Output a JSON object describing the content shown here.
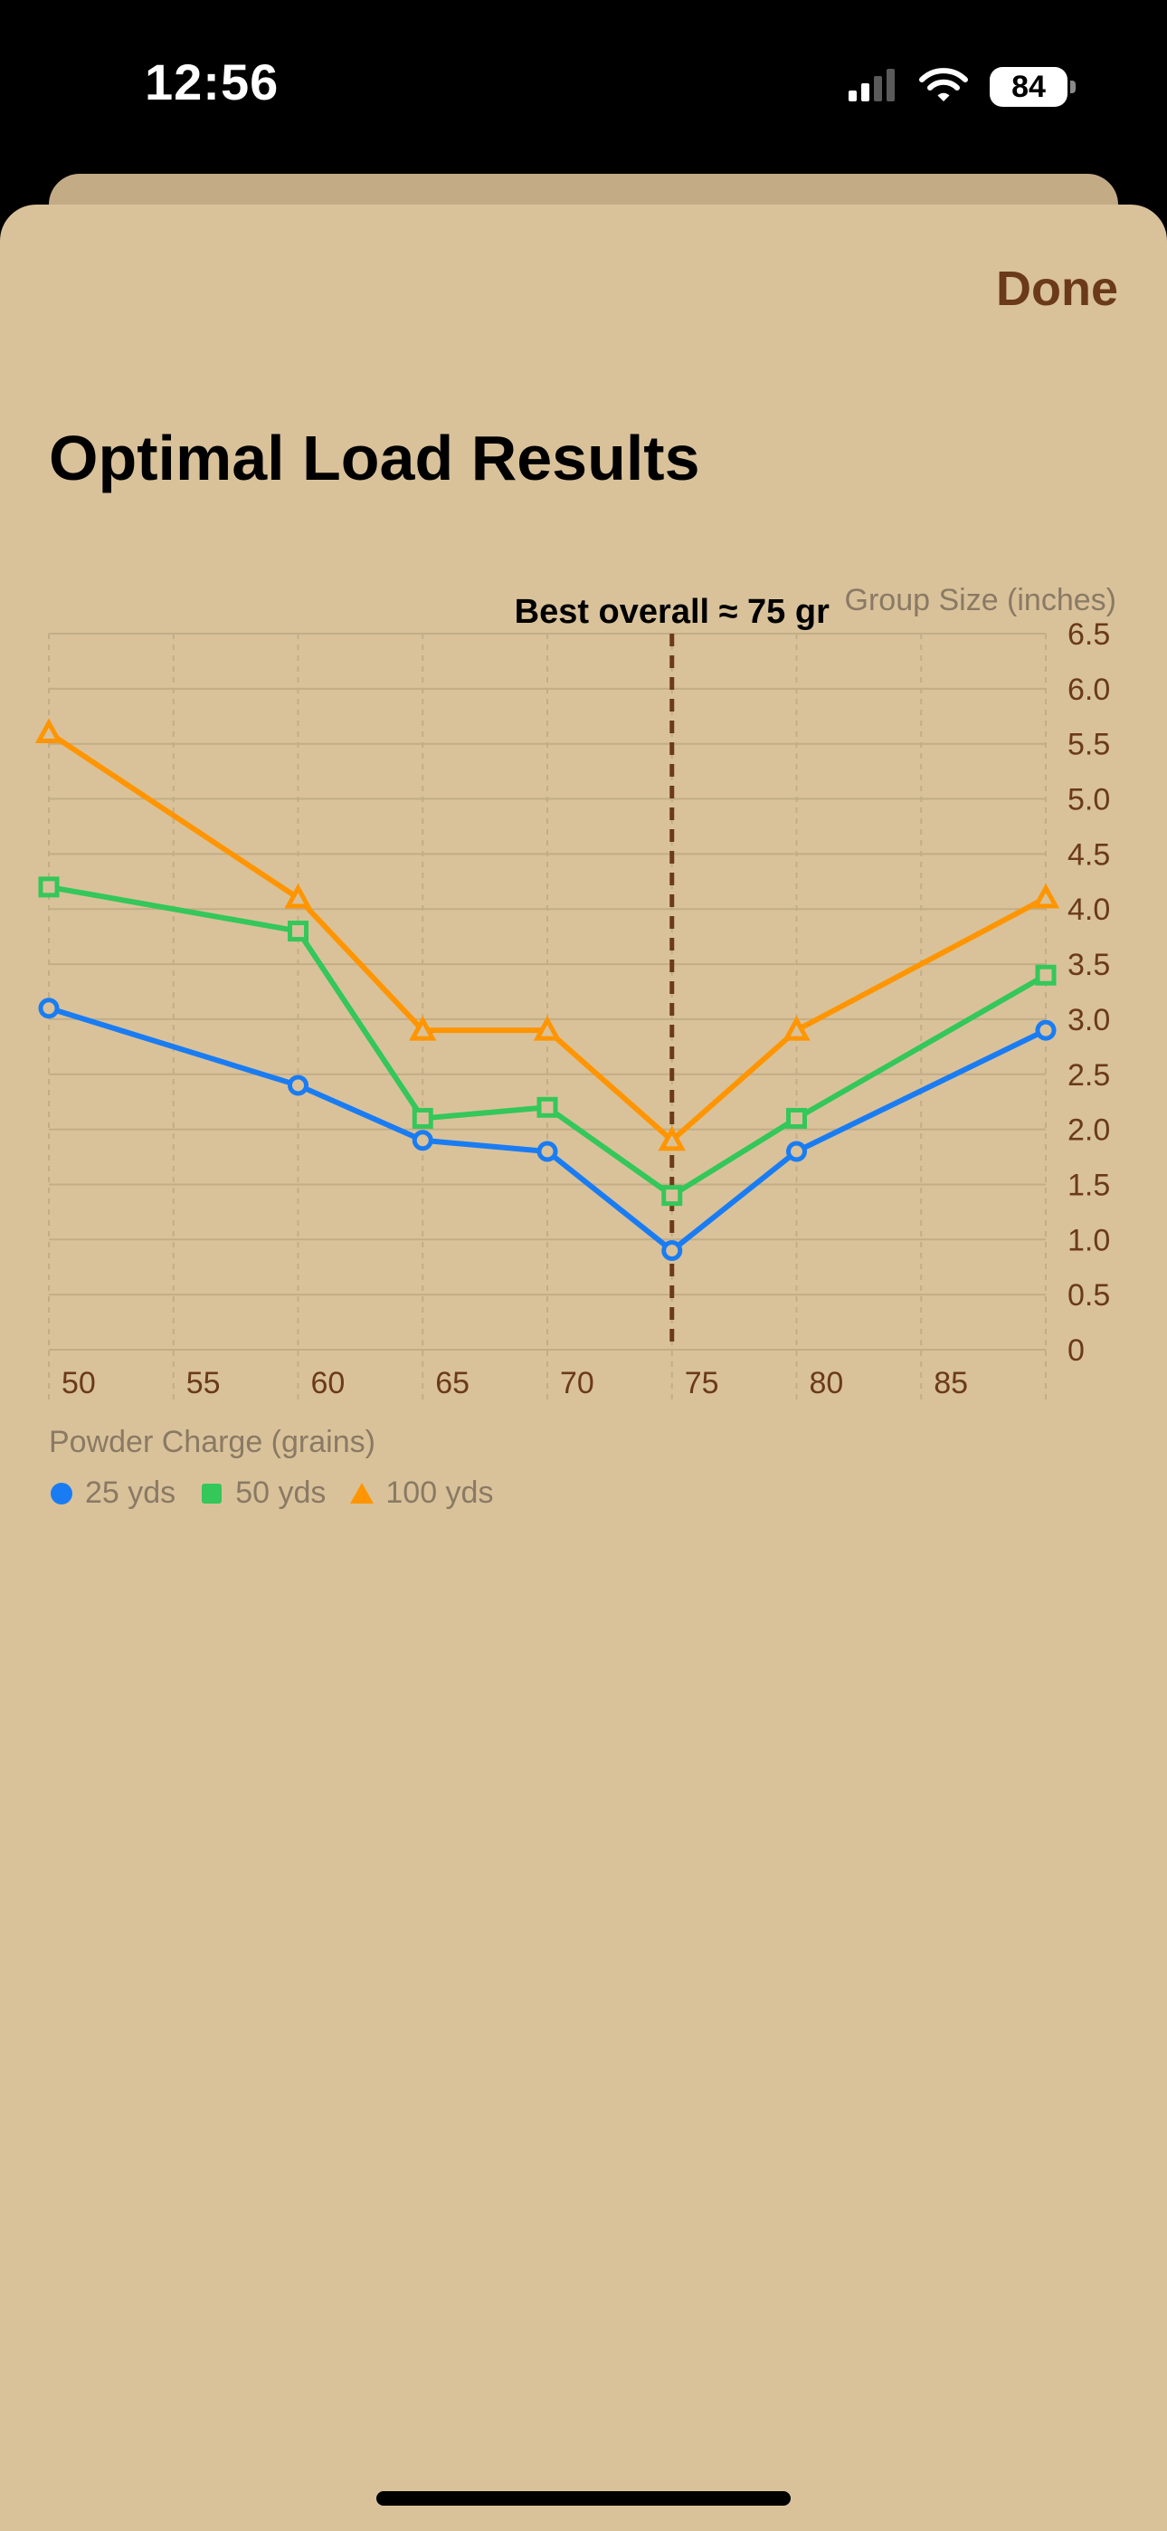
{
  "status": {
    "time": "12:56",
    "battery": "84"
  },
  "header": {
    "done_label": "Done",
    "title": "Optimal Load Results"
  },
  "chart_data": {
    "type": "line",
    "title": "",
    "xlabel": "Powder Charge (grains)",
    "ylabel": "Group Size (inches)",
    "xlim": [
      50,
      90
    ],
    "ylim": [
      0,
      6.5
    ],
    "x_ticks": [
      "50",
      "55",
      "60",
      "65",
      "70",
      "75",
      "80",
      "85"
    ],
    "y_ticks": [
      "0",
      "0.5",
      "1.0",
      "1.5",
      "2.0",
      "2.5",
      "3.0",
      "3.5",
      "4.0",
      "4.5",
      "5.0",
      "5.5",
      "6.0",
      "6.5"
    ],
    "x": [
      50,
      60,
      65,
      70,
      75,
      80,
      90
    ],
    "series": [
      {
        "name": "25 yds",
        "values": [
          3.1,
          2.4,
          1.9,
          1.8,
          0.9,
          1.8,
          2.9
        ],
        "color": "#1a7cf2",
        "marker": "circle"
      },
      {
        "name": "50 yds",
        "values": [
          4.2,
          3.8,
          2.1,
          2.2,
          1.4,
          2.1,
          3.4
        ],
        "color": "#34c759",
        "marker": "square"
      },
      {
        "name": "100 yds",
        "values": [
          5.6,
          4.1,
          2.9,
          2.9,
          1.9,
          2.9,
          4.1
        ],
        "color": "#ff9500",
        "marker": "triangle"
      }
    ],
    "annotation": {
      "label": "Best overall ≈ 75 gr",
      "x": 75
    },
    "grid": true,
    "legend_position": "bottom-left"
  },
  "colors": {
    "sheet_background": "#d9c29a",
    "accent": "#6b3a1a",
    "grid": "#c2ad86",
    "tick_label": "#6b3a1a"
  }
}
